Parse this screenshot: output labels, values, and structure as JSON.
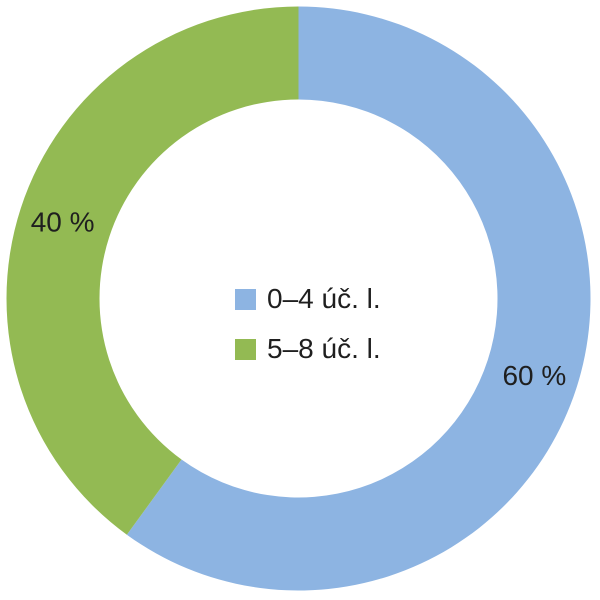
{
  "chart_data": {
    "type": "pie",
    "subtype": "donut",
    "title": "",
    "direction": "clockwise",
    "start_angle_deg_from_top": 0,
    "hole_ratio": 0.68,
    "legend_position": "center",
    "label_color": "#1f1f1f",
    "background_color": "#ffffff",
    "categories": [
      "0–4 úč. l.",
      "5–8 úč. l."
    ],
    "values": [
      60,
      40
    ],
    "slices": [
      {
        "label": "0–4 úč. l.",
        "value": 60,
        "color": "#8DB4E2",
        "data_label": "60 %"
      },
      {
        "label": "5–8 úč. l.",
        "value": 40,
        "color": "#93BA53",
        "data_label": "40 %"
      }
    ]
  }
}
